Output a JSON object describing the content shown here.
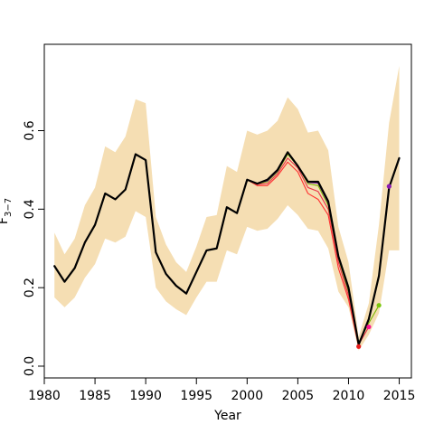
{
  "chart_data": {
    "type": "line",
    "title": "",
    "xlabel": "Year",
    "ylabel": "F",
    "ylabel_sub": "3−7",
    "xlim": [
      1980,
      2016.2
    ],
    "ylim": [
      -0.03,
      0.82
    ],
    "x_ticks": [
      1980,
      1985,
      1990,
      1995,
      2000,
      2005,
      2010,
      2015
    ],
    "y_ticks": [
      0.0,
      0.2,
      0.4,
      0.6
    ],
    "x_tick_labels": [
      "1980",
      "1985",
      "1990",
      "1995",
      "2000",
      "2005",
      "2010",
      "2015"
    ],
    "y_tick_labels": [
      "0.0",
      "0.2",
      "0.4",
      "0.6"
    ],
    "grid": false,
    "legend": "none",
    "colors": {
      "band": "#f5deb3",
      "main": "#000000",
      "retro": "#ff3030",
      "axis": "#000000"
    },
    "band": {
      "x": [
        1981,
        1982,
        1983,
        1984,
        1985,
        1986,
        1987,
        1988,
        1989,
        1990,
        1991,
        1992,
        1993,
        1994,
        1995,
        1996,
        1997,
        1998,
        1999,
        2000,
        2001,
        2002,
        2003,
        2004,
        2005,
        2006,
        2007,
        2008,
        2009,
        2010,
        2011,
        2012,
        2013,
        2014,
        2015
      ],
      "lower": [
        0.175,
        0.15,
        0.175,
        0.225,
        0.26,
        0.325,
        0.315,
        0.33,
        0.395,
        0.38,
        0.2,
        0.165,
        0.145,
        0.13,
        0.175,
        0.215,
        0.215,
        0.295,
        0.285,
        0.355,
        0.345,
        0.35,
        0.375,
        0.41,
        0.385,
        0.35,
        0.345,
        0.3,
        0.19,
        0.15,
        0.04,
        0.08,
        0.135,
        0.295,
        0.295
      ],
      "upper": [
        0.34,
        0.285,
        0.325,
        0.41,
        0.455,
        0.56,
        0.545,
        0.585,
        0.68,
        0.67,
        0.38,
        0.31,
        0.265,
        0.24,
        0.305,
        0.38,
        0.385,
        0.51,
        0.495,
        0.6,
        0.59,
        0.6,
        0.625,
        0.685,
        0.655,
        0.595,
        0.6,
        0.55,
        0.355,
        0.265,
        0.075,
        0.16,
        0.36,
        0.62,
        0.765
      ]
    },
    "series": [
      {
        "x": [
          1981,
          1982,
          1983,
          1984,
          1985,
          1986,
          1987,
          1988,
          1989,
          1990,
          1991,
          1992,
          1993,
          1994,
          1995,
          1996,
          1997,
          1998,
          1999,
          2000,
          2001,
          2002,
          2003,
          2004,
          2005,
          2006,
          2007,
          2008,
          2009,
          2010,
          2011,
          2012,
          2013,
          2014,
          2015
        ],
        "y": [
          0.255,
          0.215,
          0.25,
          0.315,
          0.36,
          0.44,
          0.425,
          0.45,
          0.54,
          0.525,
          0.29,
          0.235,
          0.205,
          0.185,
          0.24,
          0.295,
          0.3,
          0.405,
          0.39,
          0.475,
          0.465,
          0.475,
          0.5,
          0.545,
          0.51,
          0.47,
          0.47,
          0.42,
          0.28,
          0.2,
          0.055,
          0.12,
          0.23,
          0.455,
          0.53
        ],
        "color": "#000000",
        "width": 2.2
      },
      {
        "x": [
          2000,
          2001,
          2002,
          2003,
          2004,
          2005,
          2006,
          2007,
          2008,
          2009,
          2010,
          2011
        ],
        "y": [
          0.475,
          0.46,
          0.46,
          0.485,
          0.52,
          0.495,
          0.44,
          0.425,
          0.385,
          0.25,
          0.17,
          0.05
        ],
        "color": "#ff3030",
        "width": 1.1
      },
      {
        "x": [
          2000,
          2001,
          2002,
          2003,
          2004,
          2005,
          2006,
          2007,
          2008,
          2009,
          2010,
          2011,
          2012
        ],
        "y": [
          0.475,
          0.463,
          0.465,
          0.49,
          0.53,
          0.505,
          0.455,
          0.445,
          0.4,
          0.265,
          0.18,
          0.055,
          0.1
        ],
        "color": "#e8354a",
        "width": 1.1
      },
      {
        "x": [
          2000,
          2001,
          2002,
          2003,
          2004,
          2005,
          2006,
          2007,
          2008,
          2009,
          2010,
          2011,
          2012,
          2013
        ],
        "y": [
          0.475,
          0.465,
          0.47,
          0.495,
          0.54,
          0.51,
          0.465,
          0.46,
          0.41,
          0.275,
          0.19,
          0.06,
          0.11,
          0.155
        ],
        "color": "#7ab800",
        "width": 1.1
      },
      {
        "x": [
          2000,
          2001,
          2002,
          2003,
          2004,
          2005,
          2006,
          2007,
          2008,
          2009,
          2010,
          2011,
          2012,
          2013,
          2014
        ],
        "y": [
          0.476,
          0.466,
          0.472,
          0.497,
          0.543,
          0.512,
          0.468,
          0.466,
          0.415,
          0.278,
          0.195,
          0.058,
          0.118,
          0.228,
          0.458
        ],
        "color": "#7b1fa2",
        "width": 1.1
      }
    ],
    "endpoints": [
      {
        "x": 2011,
        "y": 0.05,
        "color": "#e81c1c"
      },
      {
        "x": 2012,
        "y": 0.1,
        "color": "#ff1493"
      },
      {
        "x": 2013,
        "y": 0.155,
        "color": "#7ac70c"
      },
      {
        "x": 2014,
        "y": 0.458,
        "color": "#8a1ab3"
      }
    ]
  }
}
